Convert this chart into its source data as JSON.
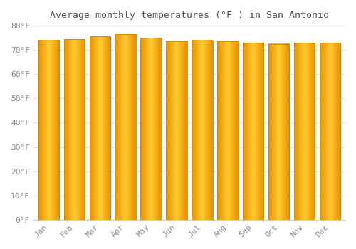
{
  "title": "Average monthly temperatures (°F ) in San Antonio",
  "months": [
    "Jan",
    "Feb",
    "Mar",
    "Apr",
    "May",
    "Jun",
    "Jul",
    "Aug",
    "Sep",
    "Oct",
    "Nov",
    "Dec"
  ],
  "values": [
    74,
    74.5,
    75.5,
    76.5,
    75,
    73.5,
    74,
    73.5,
    73,
    72.5,
    73,
    73
  ],
  "bar_color_center": "#FFCC33",
  "bar_color_edge": "#E89000",
  "bar_outline_color": "#CC8800",
  "background_color": "#FFFFFF",
  "ylim": [
    0,
    80
  ],
  "ytick_step": 10,
  "title_fontsize": 9.5,
  "tick_fontsize": 8,
  "tick_color": "#888888",
  "grid_color": "#E0E0E8",
  "bar_width": 0.82
}
